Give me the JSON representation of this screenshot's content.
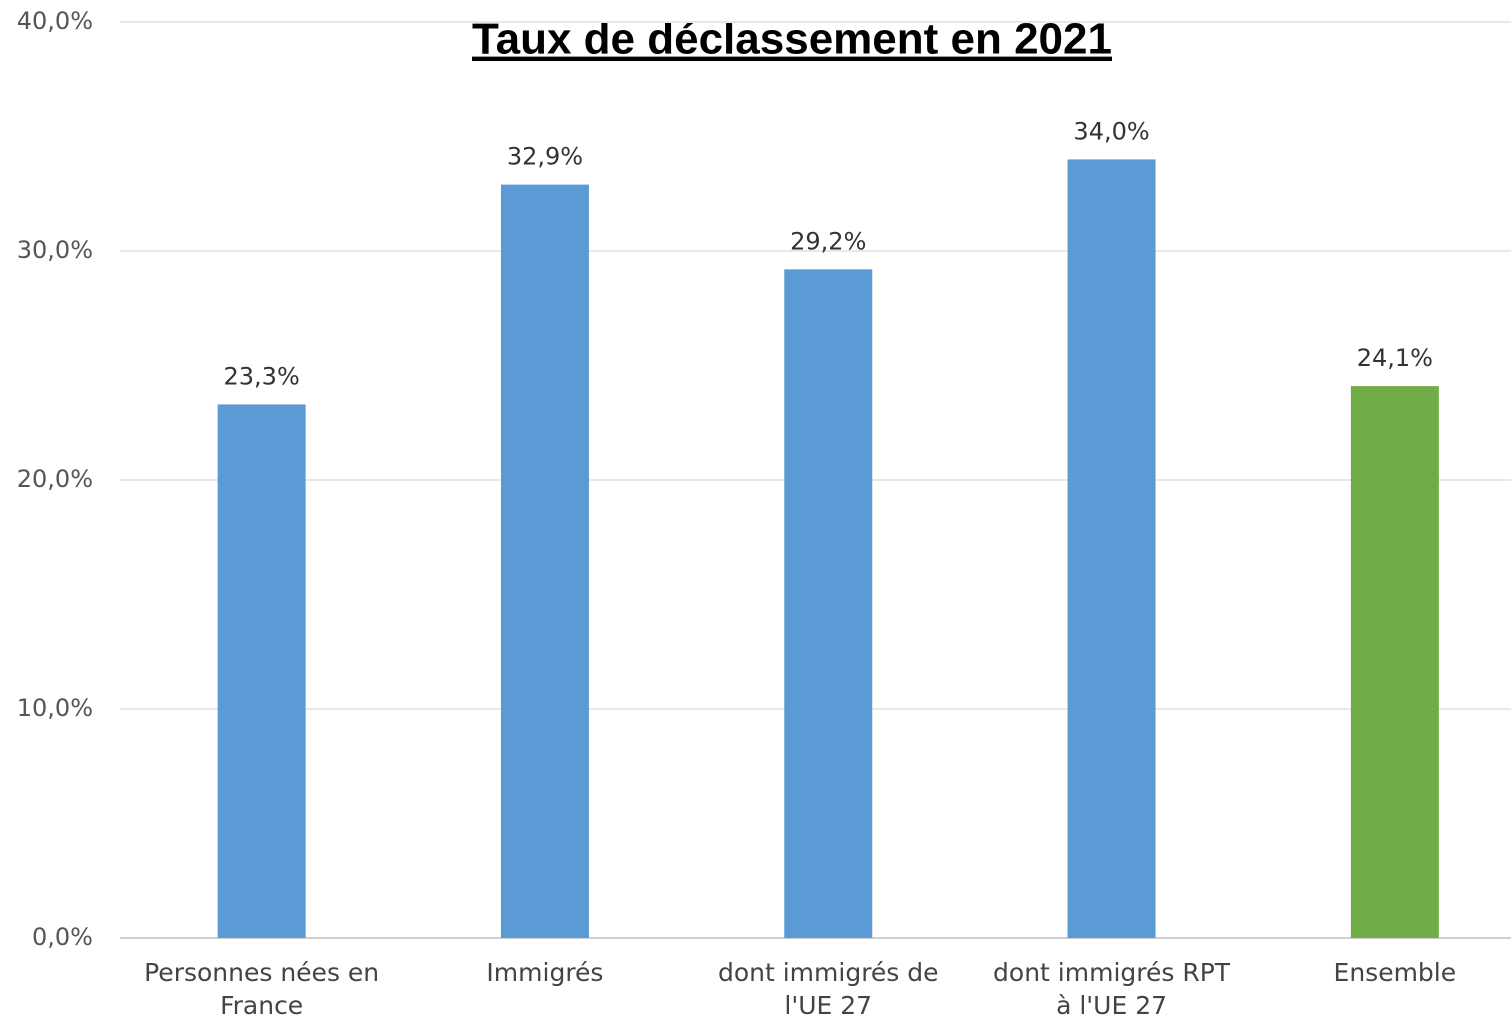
{
  "chart_data": {
    "type": "bar",
    "title": "Taux de déclassement en 2021",
    "categories": [
      "Personnes nées en France",
      "Immigrés",
      "dont immigrés de l'UE 27",
      "dont immigrés RPT à l'UE 27",
      "Ensemble"
    ],
    "values": [
      23.3,
      32.9,
      29.2,
      34.0,
      24.1
    ],
    "value_labels": [
      "23,3%",
      "32,9%",
      "29,2%",
      "34,0%",
      "24,1%"
    ],
    "colors": [
      "#5b9bd5",
      "#5b9bd5",
      "#5b9bd5",
      "#5b9bd5",
      "#70ad47"
    ],
    "ylim": [
      0,
      40
    ],
    "yticks": [
      {
        "value": 0,
        "label": "0,0%"
      },
      {
        "value": 10,
        "label": "10,0%"
      },
      {
        "value": 20,
        "label": "20,0%"
      },
      {
        "value": 30,
        "label": "30,0%"
      },
      {
        "value": 40,
        "label": "40,0%"
      }
    ],
    "grid": true
  }
}
